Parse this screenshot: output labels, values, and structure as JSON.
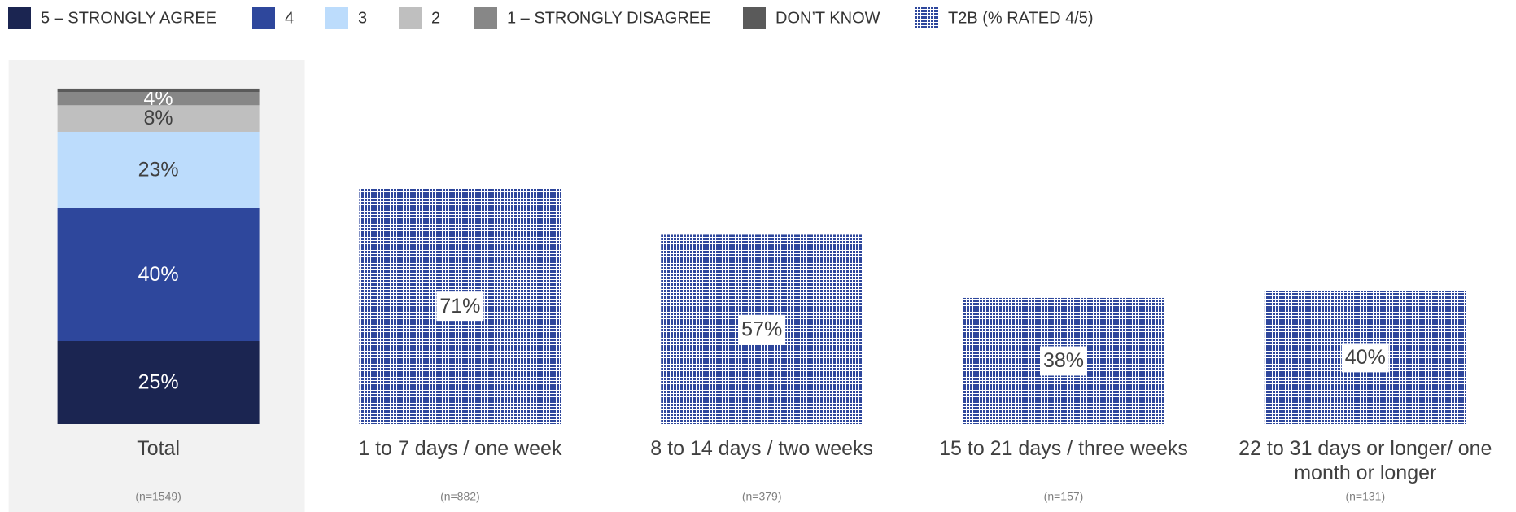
{
  "chart_data": {
    "type": "stacked_bar",
    "categories": [
      "Total",
      "1 to 7 days / one week",
      "8 to 14 days / two weeks",
      "15 to 21 days / three weeks",
      "22 to 31 days or longer/ one month or longer"
    ],
    "base_sizes": [
      "(n=1549)",
      "(n=882)",
      "(n=379)",
      "(n=157)",
      "(n=131)"
    ],
    "ylim": [
      0,
      100
    ],
    "highlight_first_category": true,
    "series": [
      {
        "name": "5 – STRONGLY AGREE",
        "color": "#1b2551",
        "values": [
          25,
          null,
          null,
          null,
          null
        ],
        "value_labels": [
          "25%",
          null,
          null,
          null,
          null
        ]
      },
      {
        "name": "4",
        "color": "#2e479c",
        "values": [
          40,
          null,
          null,
          null,
          null
        ],
        "value_labels": [
          "40%",
          null,
          null,
          null,
          null
        ]
      },
      {
        "name": "3",
        "color": "#bcdcfc",
        "values": [
          23,
          null,
          null,
          null,
          null
        ],
        "value_labels": [
          "23%",
          null,
          null,
          null,
          null
        ]
      },
      {
        "name": "2",
        "color": "#bfbfbf",
        "values": [
          8,
          null,
          null,
          null,
          null
        ],
        "value_labels": [
          "8%",
          null,
          null,
          null,
          null
        ]
      },
      {
        "name": "1 – STRONGLY DISAGREE",
        "color": "#878787",
        "values": [
          4,
          null,
          null,
          null,
          null
        ],
        "value_labels": [
          "4%",
          null,
          null,
          null,
          null
        ]
      },
      {
        "name": "DON’T KNOW",
        "color": "#5a5a5a",
        "values": [
          1,
          null,
          null,
          null,
          null
        ],
        "value_labels": [
          null,
          null,
          null,
          null,
          null
        ]
      },
      {
        "name": "T2B (% RATED 4/5)",
        "color": "#2e479c",
        "pattern": "dots",
        "values": [
          null,
          71,
          57,
          38,
          40
        ],
        "value_labels": [
          null,
          "71%",
          "57%",
          "38%",
          "40%"
        ]
      }
    ]
  }
}
